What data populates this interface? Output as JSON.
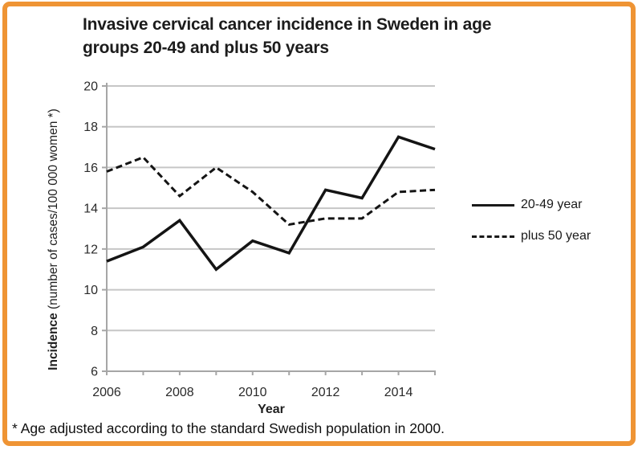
{
  "frame": {
    "border_color": "#EF9434"
  },
  "title_lines": [
    "Invasive cervical cancer incidence in Sweden in age",
    "groups 20-49 and plus 50 years"
  ],
  "axis": {
    "ylabel_bold": "Incidence",
    "ylabel_rest": " (number of cases/100 000 women *)",
    "xlabel": "Year"
  },
  "legend": [
    {
      "label": "20-49 year",
      "style": "solid"
    },
    {
      "label": "plus 50 year",
      "style": "dashed"
    }
  ],
  "footnote": "* Age adjusted according to the standard Swedish population in 2000.",
  "chart_data": {
    "type": "line",
    "title": "Invasive cervical cancer incidence in Sweden in age groups 20-49 and plus 50 years",
    "xlabel": "Year",
    "ylabel": "Incidence (number of cases/100 000 women *)",
    "x": [
      2006,
      2007,
      2008,
      2009,
      2010,
      2011,
      2012,
      2013,
      2014,
      2015
    ],
    "series": [
      {
        "name": "20-49 year",
        "line_style": "solid",
        "values": [
          11.4,
          12.1,
          13.4,
          11.0,
          12.4,
          11.8,
          14.9,
          14.5,
          17.5,
          16.9
        ]
      },
      {
        "name": "plus 50 year",
        "line_style": "dashed",
        "values": [
          15.8,
          16.5,
          14.6,
          16.0,
          14.8,
          13.2,
          13.5,
          13.5,
          14.8,
          14.9
        ]
      }
    ],
    "ylim": [
      6,
      20
    ],
    "yticks": [
      6,
      8,
      10,
      12,
      14,
      16,
      18,
      20
    ],
    "xtick_labels": [
      "2006",
      "2008",
      "2010",
      "2012",
      "2014"
    ],
    "xticks_labeled_at": [
      2006,
      2008,
      2010,
      2012,
      2014
    ],
    "grid": true,
    "legend_position": "right",
    "line_color": "#141414",
    "grid_color": "#c6c6c6",
    "axis_color": "#a6a6a6"
  }
}
